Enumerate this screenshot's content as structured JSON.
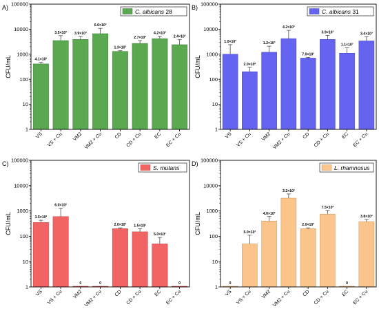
{
  "chart_data": [
    {
      "panel": "A)",
      "type": "bar",
      "legend": {
        "prefix": "C. albicans",
        "suffix": " 28",
        "location": "top-right",
        "color": "#5aa84f"
      },
      "color": "#5aa84f",
      "edge_color": "#3b7a34",
      "categories": [
        "VS",
        "VS + Cu",
        "VM2",
        "VM2 + Cu",
        "CD",
        "CD + Cu",
        "EC",
        "EC + Cu"
      ],
      "values": [
        410,
        3500,
        3900,
        6600,
        1300,
        2700,
        4200,
        2400
      ],
      "errors": [
        60,
        2000,
        1200,
        4200,
        80,
        800,
        1000,
        1400
      ],
      "labels": [
        "4.1×10²",
        "3.5×10³",
        "3.9×10³",
        "6.6×10³",
        "1.3×10³",
        "2.7×10³",
        "4.2×10³",
        "2.4×10³"
      ],
      "ylabel": "CFU/mL",
      "yscale": "log",
      "ylim": [
        1,
        100000
      ],
      "yticks": [
        "1",
        "10",
        "100",
        "1000",
        "10000",
        "100000"
      ],
      "grid": false
    },
    {
      "panel": "B)",
      "type": "bar",
      "legend": {
        "prefix": "C. albicans",
        "suffix": " 31",
        "location": "top-right",
        "color": "#6464f0"
      },
      "color": "#6464f0",
      "edge_color": "#3d3dbd",
      "categories": [
        "VS",
        "VS + Cu",
        "VM2",
        "VM2 + Cu",
        "CD",
        "CD + Cu",
        "EC",
        "EC + Cu"
      ],
      "values": [
        1000,
        200,
        1200,
        4200,
        700,
        3900,
        1100,
        3400
      ],
      "errors": [
        1400,
        100,
        900,
        4800,
        50,
        1800,
        700,
        1500
      ],
      "labels": [
        "1.0×10³",
        "2.0×10²",
        "1.2×10³",
        "4.2×10³",
        "7.0×10²",
        "3.9×10³",
        "1.1×10³",
        "3.4×10³"
      ],
      "ylabel": "CFU/mL",
      "yscale": "log",
      "ylim": [
        1,
        100000
      ],
      "yticks": [
        "1",
        "10",
        "100",
        "1000",
        "10000",
        "100000"
      ],
      "grid": false
    },
    {
      "panel": "C)",
      "type": "bar",
      "legend": {
        "prefix": "S. mutans",
        "suffix": "",
        "location": "top-right",
        "color": "#f26464"
      },
      "color": "#f26464",
      "edge_color": "#c03c3c",
      "categories": [
        "VS",
        "VS + Cu",
        "VM2",
        "VM2 + Cu",
        "CD",
        "CD + Cu",
        "EC",
        "EC + Cu"
      ],
      "values": [
        350,
        600,
        0,
        0,
        200,
        150,
        50,
        0
      ],
      "errors": [
        80,
        700,
        0,
        0,
        15,
        50,
        40,
        0
      ],
      "labels": [
        "3.5×10²",
        "6.0×10²",
        "0",
        "0",
        "2.0×10²",
        "1.5×10²",
        "5.0×10¹",
        "0"
      ],
      "ylabel": "CFU/mL",
      "yscale": "log",
      "ylim": [
        1,
        100000
      ],
      "yticks": [
        "1",
        "10",
        "100",
        "1000",
        "10000",
        "100000"
      ],
      "grid": false
    },
    {
      "panel": "D)",
      "type": "bar",
      "legend": {
        "prefix": "L. rhamnosus",
        "suffix": "",
        "location": "top-right",
        "color": "#fbc48a"
      },
      "color": "#fbc48a",
      "edge_color": "#c8925a",
      "categories": [
        "VS",
        "VS + Cu",
        "VM2",
        "VM2 + Cu",
        "CD",
        "CD + Cu",
        "EC",
        "EC + Cu"
      ],
      "values": [
        0,
        50,
        400,
        3200,
        200,
        750,
        0,
        380
      ],
      "errors": [
        0,
        60,
        200,
        1500,
        15,
        300,
        0,
        80
      ],
      "labels": [
        "0",
        "5.0×10¹",
        "4.0×10²",
        "3.2×10³",
        "2.0×10²",
        "7.5×10²",
        "0",
        "3.8×10²"
      ],
      "ylabel": "CFU/mL",
      "yscale": "log",
      "ylim": [
        1,
        100000
      ],
      "yticks": [
        "1",
        "10",
        "100",
        "1000",
        "10000",
        "100000"
      ],
      "grid": false
    }
  ]
}
